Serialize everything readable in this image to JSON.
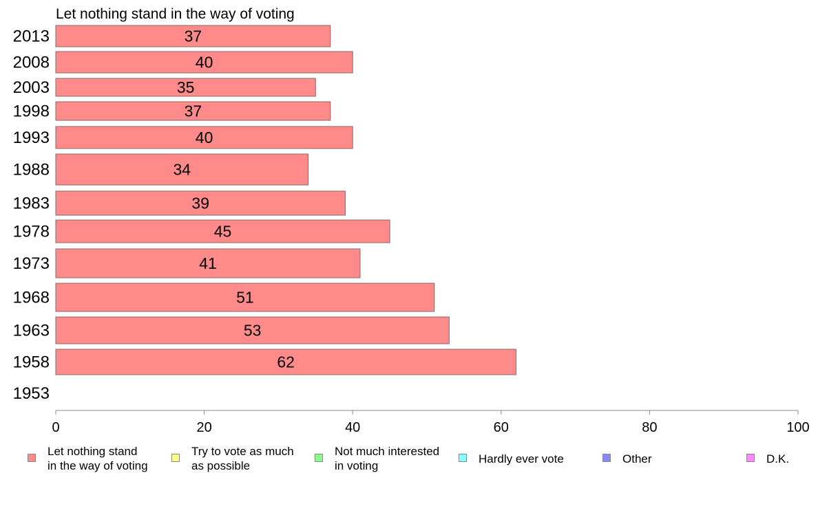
{
  "chart_data": {
    "type": "bar",
    "orientation": "horizontal",
    "title": "Let nothing stand in the way of voting",
    "categories": [
      "2013",
      "2008",
      "2003",
      "1998",
      "1993",
      "1988",
      "1983",
      "1978",
      "1973",
      "1968",
      "1963",
      "1958",
      "1953"
    ],
    "values": [
      37,
      40,
      35,
      37,
      40,
      34,
      39,
      45,
      41,
      51,
      53,
      62,
      null
    ],
    "data_labels": [
      "37",
      "40",
      "35",
      "37",
      "40",
      "34",
      "39",
      "45",
      "41",
      "51",
      "53",
      "62",
      ""
    ],
    "xlim": [
      0,
      100
    ],
    "xticks": [
      "0",
      "20",
      "40",
      "60",
      "80",
      "100"
    ],
    "grid": false,
    "bar_color": "#ff8a8a",
    "legend": [
      {
        "label": "Let nothing stand\nin the way of voting",
        "color": "#ff8a8a"
      },
      {
        "label": "Try to vote as much\nas possible",
        "color": "#ffff88"
      },
      {
        "label": "Not much interested\nin voting",
        "color": "#88ff88"
      },
      {
        "label": "Hardly ever vote",
        "color": "#88ffff"
      },
      {
        "label": "Other",
        "color": "#8888ff"
      },
      {
        "label": "D.K.",
        "color": "#ff88ff"
      }
    ],
    "legend_position": "bottom"
  }
}
